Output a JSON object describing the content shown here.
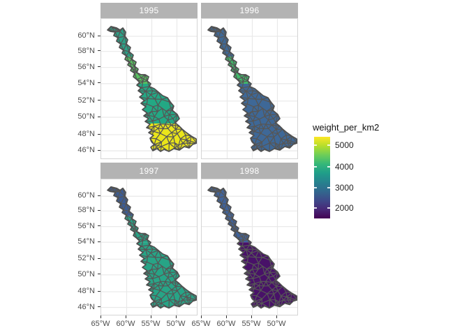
{
  "figure": {
    "background": "#ffffff",
    "panel_bg": "#ffffff",
    "panel_border": "#d4d4d4",
    "grid_color": "#e9e9e9",
    "strip_bg": "#b3b3b3",
    "strip_text_color": "#ffffff",
    "axis_text_color": "#4d4d4d",
    "tick_color": "#333333",
    "mesh_stroke": "#565656",
    "outline_stroke": "#4f4f4f"
  },
  "facets": [
    {
      "label": "1995",
      "band_colors": [
        "#2aa287",
        "#57c15f",
        "#23a884",
        "#eae51a"
      ]
    },
    {
      "label": "1996",
      "band_colors": [
        "#3e6897",
        "#40ba69",
        "#3e6897",
        "#3e6897"
      ]
    },
    {
      "label": "1997",
      "band_colors": [
        "#3b5c96",
        "#27a486",
        "#27a486",
        "#27a486"
      ]
    },
    {
      "label": "1998",
      "band_colors": [
        "#3f639c",
        "#3f639c",
        "#481168",
        "#481168"
      ]
    }
  ],
  "y_axis": {
    "ticks": [
      "60°N",
      "58°N",
      "56°N",
      "54°N",
      "52°N",
      "50°N",
      "48°N",
      "46°N"
    ]
  },
  "x_axis": {
    "ticks": [
      "65°W",
      "60°W",
      "55°W",
      "50°W"
    ]
  },
  "legend": {
    "title": "weight_per_km2",
    "ticks": [
      "5000",
      "4000",
      "3000",
      "2000"
    ],
    "gradient": [
      "#fde725",
      "#b5de2b",
      "#6ece58",
      "#35b779",
      "#1f9e89",
      "#26828e",
      "#31688e",
      "#3e4989",
      "#482878",
      "#440154"
    ]
  },
  "chart_data": {
    "type": "heatmap",
    "subtype": "faceted-choropleth-map",
    "facet_variable": "year",
    "facets": [
      "1995",
      "1996",
      "1997",
      "1998"
    ],
    "fill_variable": "weight_per_km2",
    "fill_scale": "viridis",
    "fill_range": [
      1530,
      5370
    ],
    "legend_ticks": [
      5000,
      4000,
      3000,
      2000
    ],
    "x_ticks_deg_west": [
      65,
      60,
      55,
      50
    ],
    "y_ticks_deg_north": [
      60,
      58,
      56,
      54,
      52,
      50,
      48,
      46
    ],
    "xlim_deg_west": [
      65.0,
      45.7
    ],
    "ylim_deg_north": [
      45.0,
      62.0
    ],
    "region_band_values_by_year": {
      "1995": {
        "north_61-57N": 3760,
        "mid_57-54N": 4290,
        "south_54-50N": 3830,
        "south_50-46N": 5250
      },
      "1996": {
        "north_61-57N": 3100,
        "mid_57-54N": 4220,
        "south_54-50N": 3100,
        "south_50-46N": 3100
      },
      "1997": {
        "north_61-57N": 2870,
        "mid_57-54N": 3800,
        "south_54-50N": 3800,
        "south_50-46N": 3800
      },
      "1998": {
        "north_61-57N": 3070,
        "mid_57-54N": 3070,
        "south_54-50N": 1680,
        "south_50-46N": 1680
      }
    },
    "legend_position": "right",
    "grid": true
  }
}
